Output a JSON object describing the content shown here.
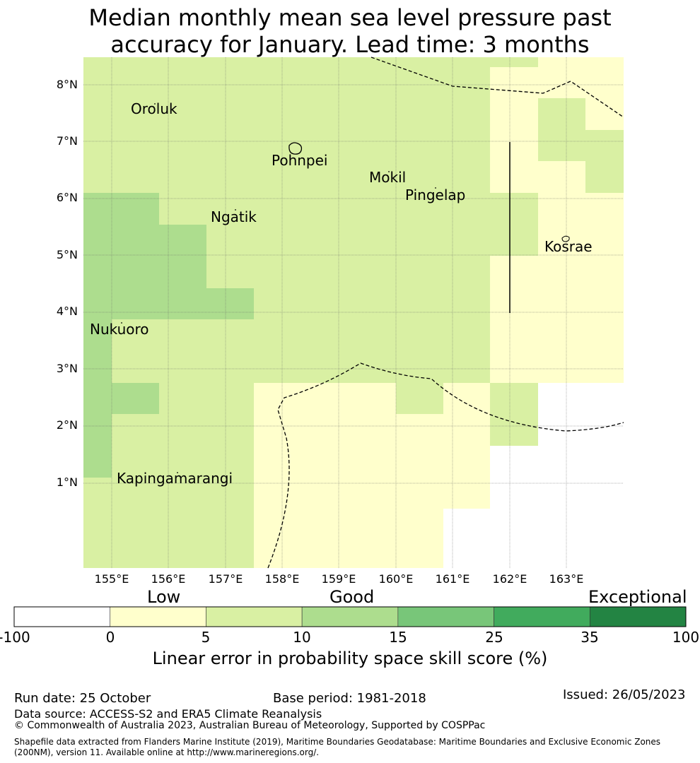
{
  "title": {
    "line1": "Median monthly mean sea level pressure past",
    "line2": "accuracy for January. Lead time: 3 months"
  },
  "map": {
    "lat_ticks": [
      "8°N",
      "7°N",
      "6°N",
      "5°N",
      "4°N",
      "3°N",
      "2°N",
      "1°N"
    ],
    "lon_ticks": [
      "155°E",
      "156°E",
      "157°E",
      "158°E",
      "159°E",
      "160°E",
      "161°E",
      "162°E",
      "163°E"
    ],
    "places": [
      "Oroluk",
      "Pohnpei",
      "Mokil",
      "Pingelap",
      "Ngatik",
      "Kosrae",
      "Nukuoro",
      "Kapingamarangi"
    ],
    "class_colors": {
      "white": "#ffffff",
      "low": "#ffffcc",
      "good1": "#d9f0a3",
      "good2": "#addd8e",
      "good3": "#78c679",
      "good4": "#41ab5d",
      "exceptional": "#238443"
    }
  },
  "colorbar": {
    "category_labels": [
      "Low",
      "Good",
      "Exceptional"
    ],
    "tick_labels": [
      "-100",
      "0",
      "5",
      "10",
      "15",
      "25",
      "35",
      "100"
    ],
    "colors": [
      "#ffffff",
      "#ffffcc",
      "#d9f0a3",
      "#addd8e",
      "#78c679",
      "#41ab5d",
      "#238443"
    ],
    "title": "Linear error in probability space skill score (%)"
  },
  "footer": {
    "run_date": "Run date: 25 October",
    "base_period": "Base period: 1981-2018",
    "issued": "Issued: 26/05/2023",
    "data_source": "Data source: ACCESS-S2 and ERA5 Climate Reanalysis",
    "copyright": "© Commonwealth of Australia 2023, Australian Bureau of Meteorology, Supported by COSPPac",
    "shapefile": "Shapefile data extracted from Flanders Marine Institute (2019), Maritime Boundaries Geodatabase: Maritime Boundaries and Exclusive Economic Zones (200NM), version 11. Available online at http://www.marineregions.org/."
  }
}
